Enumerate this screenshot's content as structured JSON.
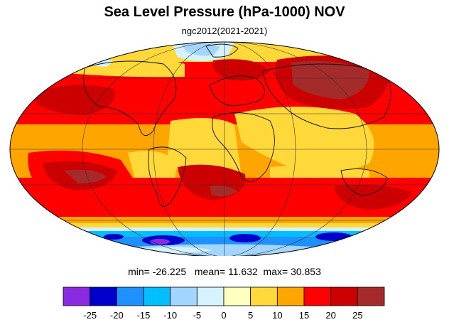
{
  "title": "Sea Level Pressure (hPa-1000) NOV",
  "subtitle": "ngc2012(2021-2021)",
  "stats": {
    "min_label": "min=",
    "min": "-26.225",
    "mean_label": "mean=",
    "mean": "11.632",
    "max_label": "max=",
    "max": "30.853"
  },
  "colorbar": {
    "colors": [
      "#8a2be2",
      "#0000cd",
      "#1e90ff",
      "#00bfff",
      "#a3d6ff",
      "#d6f2ff",
      "#ffffc0",
      "#ffd83a",
      "#ffa500",
      "#ff0000",
      "#cc0000",
      "#a52a2a"
    ],
    "ticks": [
      "-25",
      "-20",
      "-15",
      "-10",
      "-5",
      "0",
      "5",
      "10",
      "15",
      "20",
      "25"
    ]
  },
  "palette": {
    "ocean_subtropical_high": "#cc0000",
    "land_outline": "#000000",
    "antarctic_low": "#0000cd"
  }
}
